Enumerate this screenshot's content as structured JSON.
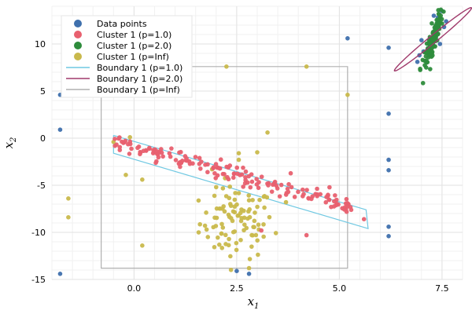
{
  "chart_data": {
    "type": "scatter",
    "title": "",
    "xlabel": "x",
    "xlabel_sub": "1",
    "ylabel": "x",
    "ylabel_sub": "2",
    "xlim": [
      -2.0,
      8.0
    ],
    "ylim": [
      -15.0,
      14.0
    ],
    "x_ticks": [
      0.0,
      2.5,
      5.0,
      7.5
    ],
    "x_tick_labels": [
      "0.0",
      "2.5",
      "5.0",
      "7.5"
    ],
    "y_ticks": [
      -15,
      -10,
      -5,
      0,
      5,
      10
    ],
    "y_tick_labels": [
      "-15",
      "-10",
      "-5",
      "0",
      "5",
      "10"
    ],
    "grid": true,
    "legend_position": "top-left",
    "colors": {
      "data_points": "#3f70ad",
      "cluster_p1": "#e8606f",
      "cluster_p2": "#2e8c3c",
      "cluster_pinf": "#c9b94c",
      "boundary_p1": "#6fc8e2",
      "boundary_p2": "#a03a6b",
      "boundary_pinf": "#b0b0b0"
    },
    "legend": [
      {
        "label": "Data points",
        "kind": "marker",
        "color_key": "data_points"
      },
      {
        "label": "Cluster 1 (p=1.0)",
        "kind": "marker",
        "color_key": "cluster_p1"
      },
      {
        "label": "Cluster 1 (p=2.0)",
        "kind": "marker",
        "color_key": "cluster_p2"
      },
      {
        "label": "Cluster 1 (p=Inf)",
        "kind": "marker",
        "color_key": "cluster_pinf"
      },
      {
        "label": "Boundary 1 (p=1.0)",
        "kind": "line",
        "color_key": "boundary_p1"
      },
      {
        "label": "Boundary 1 (p=2.0)",
        "kind": "line",
        "color_key": "boundary_p2"
      },
      {
        "label": "Boundary 1 (p=Inf)",
        "kind": "line",
        "color_key": "boundary_pinf"
      }
    ],
    "data_points": [
      [
        -1.8,
        4.6
      ],
      [
        -1.8,
        0.9
      ],
      [
        -1.8,
        -14.4
      ],
      [
        2.5,
        -14.1
      ],
      [
        2.8,
        -14.4
      ],
      [
        5.2,
        10.6
      ],
      [
        6.2,
        9.6
      ],
      [
        6.2,
        2.6
      ],
      [
        6.2,
        -2.3
      ],
      [
        6.2,
        -3.4
      ],
      [
        6.2,
        -9.4
      ],
      [
        6.2,
        -10.4
      ],
      [
        6.9,
        8.1
      ],
      [
        7.5,
        13.5
      ],
      [
        7.4,
        12.8
      ],
      [
        7.3,
        13.0
      ],
      [
        6.95,
        8.8
      ],
      [
        7.6,
        12.4
      ],
      [
        7.05,
        9.2
      ],
      [
        7.55,
        11.8
      ],
      [
        7.0,
        10.4
      ],
      [
        7.45,
        10.0
      ]
    ],
    "cluster_p1": {
      "generator": "linear-band",
      "count": 170,
      "x_range": [
        -0.5,
        5.4
      ],
      "line": {
        "slope": -1.19,
        "intercept": -0.9
      },
      "spread": 0.45,
      "extra_points": [
        [
          5.6,
          -8.6
        ],
        [
          4.2,
          -10.3
        ],
        [
          3.1,
          -9.8
        ]
      ]
    },
    "cluster_p2": {
      "generator": "ellipse-cloud",
      "count": 140,
      "center": [
        7.28,
        10.5
      ],
      "rotation_deg": 66,
      "axes": [
        2.0,
        0.32
      ]
    },
    "cluster_pinf": {
      "generator": "blob",
      "count": 95,
      "center": [
        2.5,
        -9.0
      ],
      "spread": [
        0.45,
        1.9
      ],
      "extra_points": [
        [
          -1.6,
          -6.4
        ],
        [
          -1.6,
          -8.4
        ],
        [
          -0.2,
          -3.9
        ],
        [
          -0.5,
          -0.4
        ],
        [
          -0.1,
          0.1
        ],
        [
          0.2,
          -4.4
        ],
        [
          0.2,
          -11.4
        ],
        [
          2.25,
          7.6
        ],
        [
          4.2,
          7.6
        ],
        [
          5.2,
          4.6
        ],
        [
          3.25,
          0.6
        ],
        [
          3.0,
          -1.5
        ],
        [
          2.55,
          -1.6
        ],
        [
          2.55,
          -2.3
        ],
        [
          2.0,
          -5.2
        ],
        [
          2.8,
          -6.6
        ],
        [
          3.7,
          -6.8
        ],
        [
          1.9,
          -3.3
        ],
        [
          2.8,
          -13.8
        ]
      ]
    },
    "boundary_p1": [
      [
        -0.5,
        0.3
      ],
      [
        5.65,
        -7.6
      ],
      [
        5.7,
        -9.6
      ],
      [
        -0.5,
        -1.6
      ],
      [
        -0.5,
        0.3
      ]
    ],
    "boundary_p2": {
      "center": [
        7.28,
        10.5
      ],
      "rotation_deg": 66,
      "axes": [
        2.3,
        0.42
      ]
    },
    "boundary_pinf": [
      [
        -0.8,
        7.6
      ],
      [
        5.2,
        7.6
      ],
      [
        5.2,
        -13.8
      ],
      [
        -0.8,
        -13.8
      ],
      [
        -0.8,
        7.6
      ]
    ]
  }
}
